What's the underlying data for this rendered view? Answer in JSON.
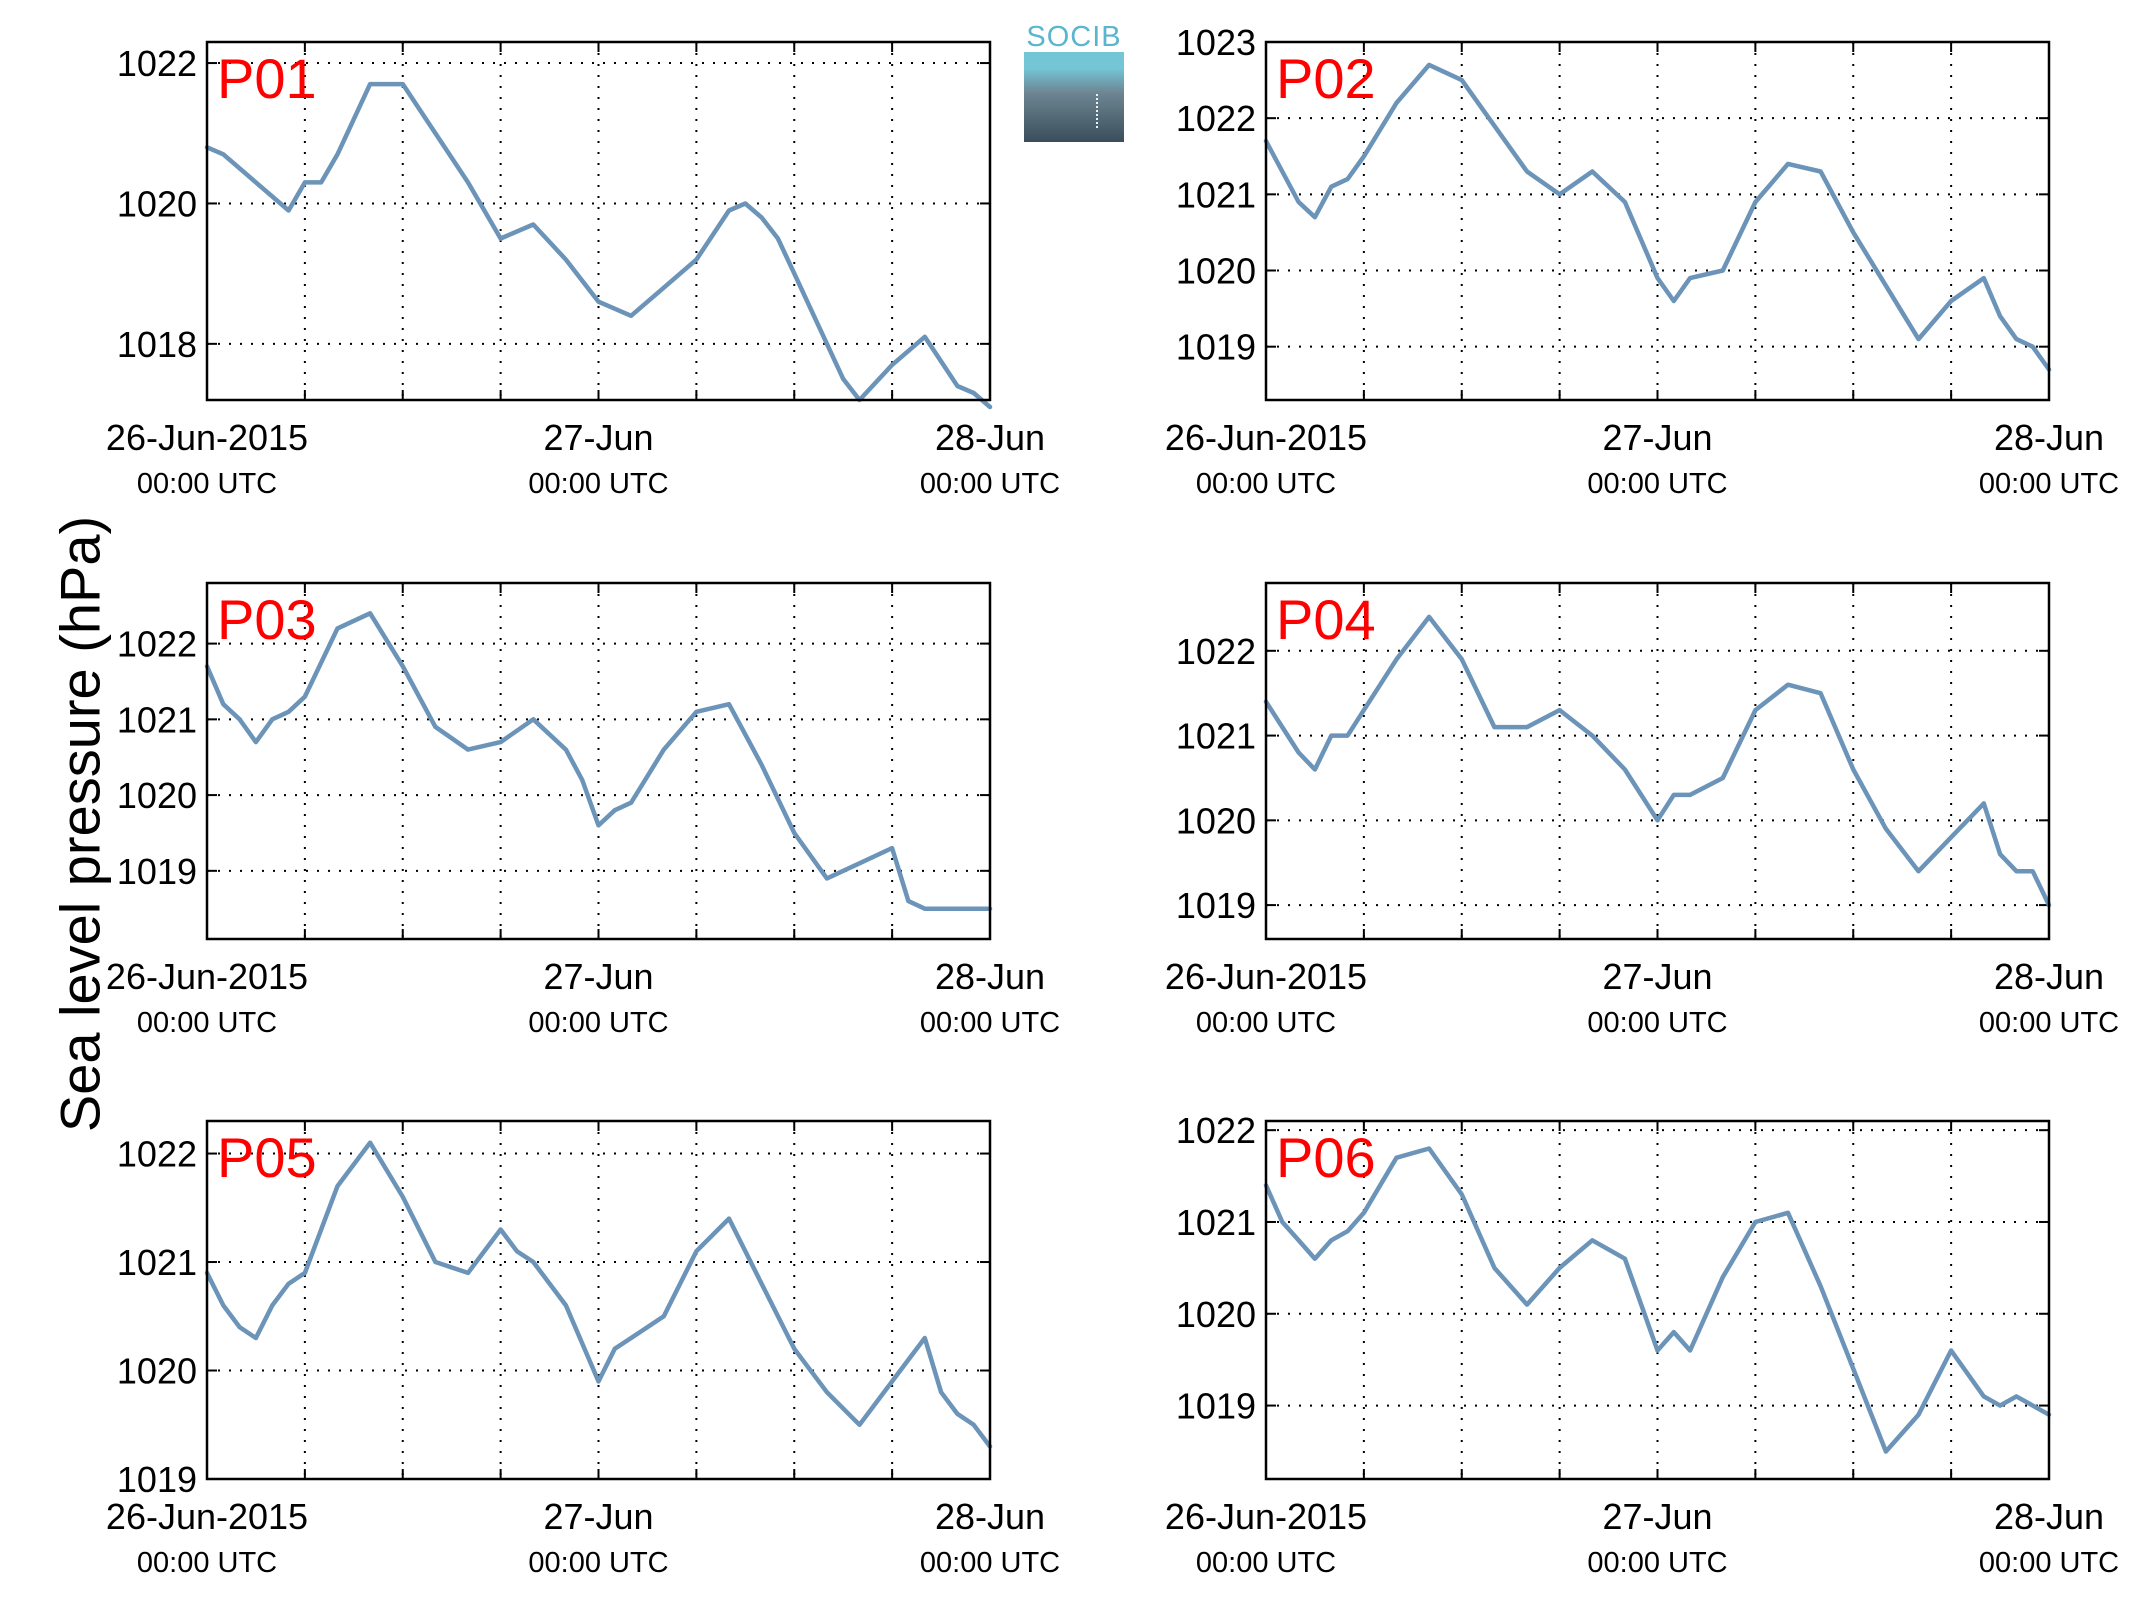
{
  "ylabel": "Sea level pressure (hPa)",
  "logo": {
    "text": "SOCIB"
  },
  "colors": {
    "line": "#6b94b8",
    "panel_label": "#ff0000",
    "grid": "#000000"
  },
  "chart_data": [
    {
      "type": "line",
      "title": "P01",
      "xlim": [
        "2015-06-26 00:00",
        "2015-06-28 00:00"
      ],
      "xticks": [
        {
          "label": "26-Jun-2015",
          "sub": "00:00 UTC"
        },
        {
          "label": "27-Jun",
          "sub": "00:00 UTC"
        },
        {
          "label": "28-Jun",
          "sub": "00:00 UTC"
        }
      ],
      "ylim": [
        1017.2,
        1022.3
      ],
      "yticks": [
        1018,
        1020,
        1022
      ],
      "series": [
        {
          "x": [
            "26 00:00",
            "26 01:00",
            "26 03:00",
            "26 05:00",
            "26 06:00",
            "26 07:00",
            "26 08:00",
            "26 09:00",
            "26 10:00",
            "26 12:00",
            "26 14:00",
            "26 16:00",
            "26 18:00",
            "26 20:00",
            "26 22:00",
            "27 00:00",
            "27 02:00",
            "27 04:00",
            "27 06:00",
            "27 08:00",
            "27 09:00",
            "27 10:00",
            "27 11:00",
            "27 12:00",
            "27 14:00",
            "27 15:00",
            "27 16:00",
            "27 18:00",
            "27 20:00",
            "27 22:00",
            "27 23:00",
            "28 00:00"
          ],
          "y": [
            1020.8,
            1020.7,
            1020.3,
            1019.9,
            1020.3,
            1020.3,
            1020.7,
            1021.2,
            1021.7,
            1021.7,
            1021.0,
            1020.3,
            1019.5,
            1019.7,
            1019.2,
            1018.6,
            1018.4,
            1018.8,
            1019.2,
            1019.9,
            1020.0,
            1019.8,
            1019.5,
            1019.0,
            1018.0,
            1017.5,
            1017.2,
            1017.7,
            1018.1,
            1017.4,
            1017.3,
            1017.1
          ]
        }
      ]
    },
    {
      "type": "line",
      "title": "P02",
      "xlim": [
        "2015-06-26 00:00",
        "2015-06-28 00:00"
      ],
      "xticks": [
        {
          "label": "26-Jun-2015",
          "sub": "00:00 UTC"
        },
        {
          "label": "27-Jun",
          "sub": "00:00 UTC"
        },
        {
          "label": "28-Jun",
          "sub": "00:00 UTC"
        }
      ],
      "ylim": [
        1018.3,
        1023.0
      ],
      "yticks": [
        1019,
        1020,
        1021,
        1022,
        1023
      ],
      "series": [
        {
          "x": [
            "26 00:00",
            "26 01:00",
            "26 02:00",
            "26 03:00",
            "26 04:00",
            "26 05:00",
            "26 06:00",
            "26 08:00",
            "26 10:00",
            "26 12:00",
            "26 14:00",
            "26 16:00",
            "26 18:00",
            "26 20:00",
            "26 22:00",
            "26 23:00",
            "27 00:00",
            "27 01:00",
            "27 02:00",
            "27 04:00",
            "27 06:00",
            "27 08:00",
            "27 10:00",
            "27 12:00",
            "27 14:00",
            "27 16:00",
            "27 18:00",
            "27 20:00",
            "27 21:00",
            "27 22:00",
            "27 23:00",
            "28 00:00"
          ],
          "y": [
            1021.7,
            1021.3,
            1020.9,
            1020.7,
            1021.1,
            1021.2,
            1021.5,
            1022.2,
            1022.7,
            1022.5,
            1021.9,
            1021.3,
            1021.0,
            1021.3,
            1020.9,
            1020.4,
            1019.9,
            1019.6,
            1019.9,
            1020.0,
            1020.9,
            1021.4,
            1021.3,
            1020.5,
            1019.8,
            1019.1,
            1019.6,
            1019.9,
            1019.4,
            1019.1,
            1019.0,
            1018.7
          ]
        }
      ]
    },
    {
      "type": "line",
      "title": "P03",
      "xlim": [
        "2015-06-26 00:00",
        "2015-06-28 00:00"
      ],
      "xticks": [
        {
          "label": "26-Jun-2015",
          "sub": "00:00 UTC"
        },
        {
          "label": "27-Jun",
          "sub": "00:00 UTC"
        },
        {
          "label": "28-Jun",
          "sub": "00:00 UTC"
        }
      ],
      "ylim": [
        1018.1,
        1022.8
      ],
      "yticks": [
        1019,
        1020,
        1021,
        1022
      ],
      "series": [
        {
          "x": [
            "26 00:00",
            "26 01:00",
            "26 02:00",
            "26 03:00",
            "26 04:00",
            "26 05:00",
            "26 06:00",
            "26 08:00",
            "26 10:00",
            "26 12:00",
            "26 14:00",
            "26 16:00",
            "26 18:00",
            "26 20:00",
            "26 22:00",
            "26 23:00",
            "27 00:00",
            "27 01:00",
            "27 02:00",
            "27 04:00",
            "27 06:00",
            "27 08:00",
            "27 10:00",
            "27 12:00",
            "27 14:00",
            "27 16:00",
            "27 18:00",
            "27 19:00",
            "27 20:00",
            "27 21:00",
            "27 22:00",
            "28 00:00"
          ],
          "y": [
            1021.7,
            1021.2,
            1021.0,
            1020.7,
            1021.0,
            1021.1,
            1021.3,
            1022.2,
            1022.4,
            1021.7,
            1020.9,
            1020.6,
            1020.7,
            1021.0,
            1020.6,
            1020.2,
            1019.6,
            1019.8,
            1019.9,
            1020.6,
            1021.1,
            1021.2,
            1020.4,
            1019.5,
            1018.9,
            1019.1,
            1019.3,
            1018.6,
            1018.5,
            1018.5,
            1018.5,
            1018.5
          ]
        }
      ]
    },
    {
      "type": "line",
      "title": "P04",
      "xlim": [
        "2015-06-26 00:00",
        "2015-06-28 00:00"
      ],
      "xticks": [
        {
          "label": "26-Jun-2015",
          "sub": "00:00 UTC"
        },
        {
          "label": "27-Jun",
          "sub": "00:00 UTC"
        },
        {
          "label": "28-Jun",
          "sub": "00:00 UTC"
        }
      ],
      "ylim": [
        1018.6,
        1022.8
      ],
      "yticks": [
        1019,
        1020,
        1021,
        1022
      ],
      "series": [
        {
          "x": [
            "26 00:00",
            "26 01:00",
            "26 02:00",
            "26 03:00",
            "26 04:00",
            "26 05:00",
            "26 06:00",
            "26 08:00",
            "26 10:00",
            "26 12:00",
            "26 14:00",
            "26 16:00",
            "26 18:00",
            "26 20:00",
            "26 22:00",
            "26 23:00",
            "27 00:00",
            "27 01:00",
            "27 02:00",
            "27 04:00",
            "27 06:00",
            "27 08:00",
            "27 10:00",
            "27 12:00",
            "27 14:00",
            "27 16:00",
            "27 18:00",
            "27 20:00",
            "27 21:00",
            "27 22:00",
            "27 23:00",
            "28 00:00"
          ],
          "y": [
            1021.4,
            1021.1,
            1020.8,
            1020.6,
            1021.0,
            1021.0,
            1021.3,
            1021.9,
            1022.4,
            1021.9,
            1021.1,
            1021.1,
            1021.3,
            1021.0,
            1020.6,
            1020.3,
            1020.0,
            1020.3,
            1020.3,
            1020.5,
            1021.3,
            1021.6,
            1021.5,
            1020.6,
            1019.9,
            1019.4,
            1019.8,
            1020.2,
            1019.6,
            1019.4,
            1019.4,
            1019.0
          ]
        }
      ]
    },
    {
      "type": "line",
      "title": "P05",
      "xlim": [
        "2015-06-26 00:00",
        "2015-06-28 00:00"
      ],
      "xticks": [
        {
          "label": "26-Jun-2015",
          "sub": "00:00 UTC"
        },
        {
          "label": "27-Jun",
          "sub": "00:00 UTC"
        },
        {
          "label": "28-Jun",
          "sub": "00:00 UTC"
        }
      ],
      "ylim": [
        1019.0,
        1022.3
      ],
      "yticks": [
        1019,
        1020,
        1021,
        1022
      ],
      "series": [
        {
          "x": [
            "26 00:00",
            "26 01:00",
            "26 02:00",
            "26 03:00",
            "26 04:00",
            "26 05:00",
            "26 06:00",
            "26 08:00",
            "26 10:00",
            "26 12:00",
            "26 14:00",
            "26 16:00",
            "26 18:00",
            "26 19:00",
            "26 20:00",
            "26 22:00",
            "27 00:00",
            "27 01:00",
            "27 02:00",
            "27 04:00",
            "27 06:00",
            "27 08:00",
            "27 10:00",
            "27 12:00",
            "27 14:00",
            "27 16:00",
            "27 18:00",
            "27 20:00",
            "27 21:00",
            "27 22:00",
            "27 23:00",
            "28 00:00"
          ],
          "y": [
            1020.9,
            1020.6,
            1020.4,
            1020.3,
            1020.6,
            1020.8,
            1020.9,
            1021.7,
            1022.1,
            1021.6,
            1021.0,
            1020.9,
            1021.3,
            1021.1,
            1021.0,
            1020.6,
            1019.9,
            1020.2,
            1020.3,
            1020.5,
            1021.1,
            1021.4,
            1020.8,
            1020.2,
            1019.8,
            1019.5,
            1019.9,
            1020.3,
            1019.8,
            1019.6,
            1019.5,
            1019.3
          ]
        }
      ]
    },
    {
      "type": "line",
      "title": "P06",
      "xlim": [
        "2015-06-26 00:00",
        "2015-06-28 00:00"
      ],
      "xticks": [
        {
          "label": "26-Jun-2015",
          "sub": "00:00 UTC"
        },
        {
          "label": "27-Jun",
          "sub": "00:00 UTC"
        },
        {
          "label": "28-Jun",
          "sub": "00:00 UTC"
        }
      ],
      "ylim": [
        1018.2,
        1022.1
      ],
      "yticks": [
        1019,
        1020,
        1021,
        1022
      ],
      "series": [
        {
          "x": [
            "26 00:00",
            "26 01:00",
            "26 02:00",
            "26 03:00",
            "26 04:00",
            "26 05:00",
            "26 06:00",
            "26 08:00",
            "26 10:00",
            "26 12:00",
            "26 14:00",
            "26 16:00",
            "26 18:00",
            "26 20:00",
            "26 22:00",
            "26 23:00",
            "27 00:00",
            "27 01:00",
            "27 02:00",
            "27 04:00",
            "27 06:00",
            "27 08:00",
            "27 10:00",
            "27 12:00",
            "27 14:00",
            "27 16:00",
            "27 18:00",
            "27 20:00",
            "27 21:00",
            "27 22:00",
            "27 23:00",
            "28 00:00"
          ],
          "y": [
            1021.4,
            1021.0,
            1020.8,
            1020.6,
            1020.8,
            1020.9,
            1021.1,
            1021.7,
            1021.8,
            1021.3,
            1020.5,
            1020.1,
            1020.5,
            1020.8,
            1020.6,
            1020.1,
            1019.6,
            1019.8,
            1019.6,
            1020.4,
            1021.0,
            1021.1,
            1020.3,
            1019.4,
            1018.5,
            1018.9,
            1019.6,
            1019.1,
            1019.0,
            1019.1,
            1019.0,
            1018.9
          ]
        }
      ]
    }
  ]
}
